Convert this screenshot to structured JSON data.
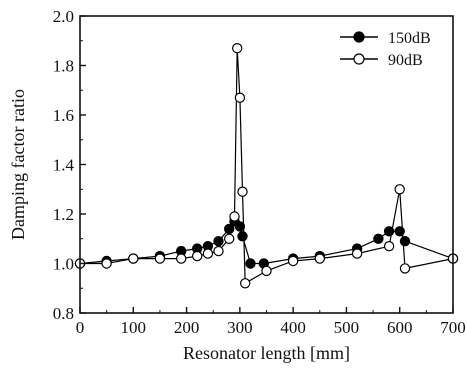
{
  "chart_data": {
    "type": "line",
    "xlabel": "Resonator length [mm]",
    "ylabel": "Damping factor ratio",
    "xlim": [
      0,
      700
    ],
    "ylim": [
      0.8,
      2.0
    ],
    "xticks": [
      0,
      100,
      200,
      300,
      400,
      500,
      600,
      700
    ],
    "yticks": [
      0.8,
      1.0,
      1.2,
      1.4,
      1.6,
      1.8,
      2.0
    ],
    "xtick_labels": [
      "0",
      "100",
      "200",
      "300",
      "400",
      "500",
      "600",
      "700"
    ],
    "ytick_labels": [
      "0.8",
      "1.0",
      "1.2",
      "1.4",
      "1.6",
      "1.8",
      "2.0"
    ],
    "grid": false,
    "legend_position": "top-right",
    "series": [
      {
        "name": "150dB",
        "marker": "filled-circle",
        "color": "#000000",
        "x": [
          0,
          50,
          100,
          150,
          190,
          220,
          240,
          260,
          280,
          290,
          300,
          305,
          320,
          345,
          400,
          450,
          520,
          560,
          580,
          600,
          610,
          700
        ],
        "y": [
          1.0,
          1.01,
          1.02,
          1.03,
          1.05,
          1.06,
          1.07,
          1.09,
          1.14,
          1.17,
          1.15,
          1.11,
          1.0,
          1.0,
          1.02,
          1.03,
          1.06,
          1.1,
          1.13,
          1.13,
          1.09,
          1.02
        ]
      },
      {
        "name": "90dB",
        "marker": "open-circle",
        "color": "#000000",
        "x": [
          0,
          50,
          100,
          150,
          190,
          220,
          240,
          260,
          280,
          290,
          295,
          300,
          305,
          310,
          350,
          400,
          450,
          520,
          580,
          600,
          610,
          700
        ],
        "y": [
          1.0,
          1.0,
          1.02,
          1.02,
          1.02,
          1.03,
          1.04,
          1.05,
          1.1,
          1.19,
          1.87,
          1.67,
          1.29,
          0.92,
          0.97,
          1.01,
          1.02,
          1.04,
          1.07,
          1.3,
          0.98,
          1.02
        ]
      }
    ]
  }
}
